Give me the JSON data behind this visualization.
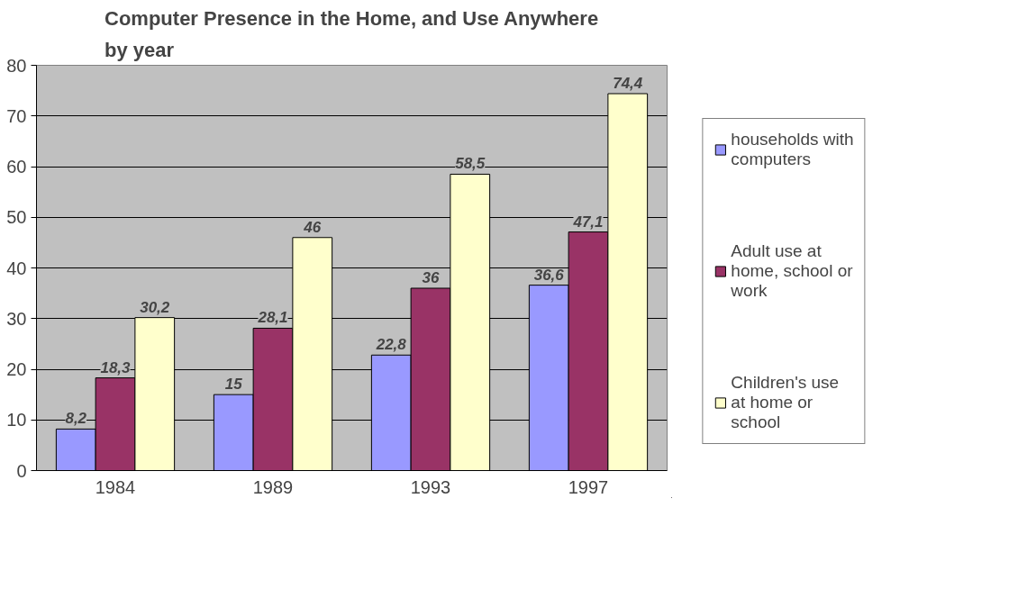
{
  "chart_data": {
    "type": "bar",
    "title": "Computer Presence in the Home, and Use Anywhere by year",
    "categories": [
      "1984",
      "1989",
      "1993",
      "1997"
    ],
    "series": [
      {
        "name": "households with computers",
        "color": "#9999ff",
        "values": [
          8.2,
          15,
          22.8,
          36.6
        ],
        "value_labels": [
          "8,2",
          "15",
          "22,8",
          "36,6"
        ]
      },
      {
        "name": "Adult use at home, school or work",
        "color": "#993366",
        "values": [
          18.3,
          28.1,
          36,
          47.1
        ],
        "value_labels": [
          "18,3",
          "28,1",
          "36",
          "47,1"
        ]
      },
      {
        "name": "Children's use at home or school",
        "color": "#ffffcc",
        "values": [
          30.2,
          46,
          58.5,
          74.4
        ],
        "value_labels": [
          "30,2",
          "46",
          "58,5",
          "74,4"
        ]
      }
    ],
    "ylim": [
      0,
      80
    ],
    "yticks": [
      0,
      10,
      20,
      30,
      40,
      50,
      60,
      70,
      80
    ],
    "grid": "y",
    "legend": "right"
  }
}
